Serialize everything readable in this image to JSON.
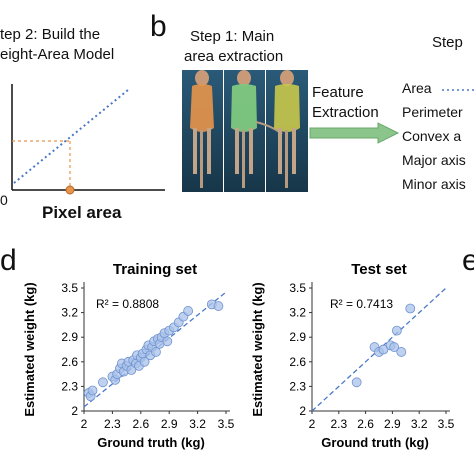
{
  "panel_a": {
    "title_line1": "tep 2: Build the",
    "title_line2": "eight-Area Model",
    "xlabel": "Pixel area",
    "origin_label": "0"
  },
  "panel_b": {
    "letter": "b",
    "step1_line1": "Step 1: Main",
    "step1_line2": "area extraction",
    "arrow_line1": "Feature",
    "arrow_line2": "Extraction",
    "step3_label": "Step",
    "features": [
      "Area",
      "Perimeter",
      "Convex a",
      "Major axis",
      "Minor axis"
    ],
    "colors": {
      "green": "#7fc97f",
      "orange": "#e8954a",
      "yellow": "#c9c84a",
      "arrow": "#8bc58b"
    }
  },
  "panel_d": {
    "letter": "d"
  },
  "panel_e": {
    "letter": "e"
  },
  "chart_data": [
    {
      "type": "scatter",
      "title": "Training set",
      "xlabel": "Ground truth (kg)",
      "ylabel": "Estimated weight (kg)",
      "annotation": "R² = 0.8808",
      "xlim": [
        2,
        3.5
      ],
      "ylim": [
        2,
        3.5
      ],
      "xticks": [
        "2",
        "2.3",
        "2.6",
        "2.9",
        "3.2",
        "3.5"
      ],
      "yticks": [
        "2",
        "2.3",
        "2.6",
        "2.9",
        "3.2",
        "3.5"
      ],
      "points": [
        [
          2.05,
          2.22
        ],
        [
          2.07,
          2.18
        ],
        [
          2.09,
          2.25
        ],
        [
          2.2,
          2.35
        ],
        [
          2.3,
          2.42
        ],
        [
          2.33,
          2.38
        ],
        [
          2.35,
          2.45
        ],
        [
          2.38,
          2.52
        ],
        [
          2.4,
          2.58
        ],
        [
          2.42,
          2.48
        ],
        [
          2.45,
          2.55
        ],
        [
          2.47,
          2.6
        ],
        [
          2.5,
          2.5
        ],
        [
          2.52,
          2.62
        ],
        [
          2.55,
          2.58
        ],
        [
          2.56,
          2.68
        ],
        [
          2.58,
          2.55
        ],
        [
          2.6,
          2.65
        ],
        [
          2.62,
          2.7
        ],
        [
          2.64,
          2.6
        ],
        [
          2.66,
          2.75
        ],
        [
          2.68,
          2.8
        ],
        [
          2.7,
          2.68
        ],
        [
          2.72,
          2.78
        ],
        [
          2.74,
          2.85
        ],
        [
          2.76,
          2.72
        ],
        [
          2.78,
          2.88
        ],
        [
          2.8,
          2.82
        ],
        [
          2.82,
          2.9
        ],
        [
          2.85,
          2.95
        ],
        [
          2.88,
          2.85
        ],
        [
          2.9,
          2.98
        ],
        [
          2.95,
          3.02
        ],
        [
          3.0,
          3.08
        ],
        [
          3.05,
          3.15
        ],
        [
          3.1,
          3.22
        ],
        [
          3.35,
          3.3
        ],
        [
          3.42,
          3.28
        ]
      ],
      "fit": [
        [
          2,
          2.05
        ],
        [
          3.5,
          3.45
        ]
      ]
    },
    {
      "type": "scatter",
      "title": "Test set",
      "xlabel": "Ground truth (kg)",
      "ylabel": "Estimated weight (kg)",
      "annotation": "R² = 0.7413",
      "xlim": [
        2,
        3.5
      ],
      "ylim": [
        2,
        3.5
      ],
      "xticks": [
        "2",
        "2.3",
        "2.6",
        "2.9",
        "3.2",
        "3.5"
      ],
      "yticks": [
        "2",
        "2.3",
        "2.6",
        "2.9",
        "3.2",
        "3.5"
      ],
      "points": [
        [
          2.5,
          2.35
        ],
        [
          2.7,
          2.78
        ],
        [
          2.75,
          2.72
        ],
        [
          2.8,
          2.75
        ],
        [
          2.88,
          2.8
        ],
        [
          2.92,
          2.78
        ],
        [
          2.95,
          2.98
        ],
        [
          3.0,
          2.72
        ],
        [
          3.1,
          3.25
        ]
      ],
      "fit": [
        [
          2,
          2.0
        ],
        [
          3.5,
          3.5
        ]
      ]
    }
  ]
}
